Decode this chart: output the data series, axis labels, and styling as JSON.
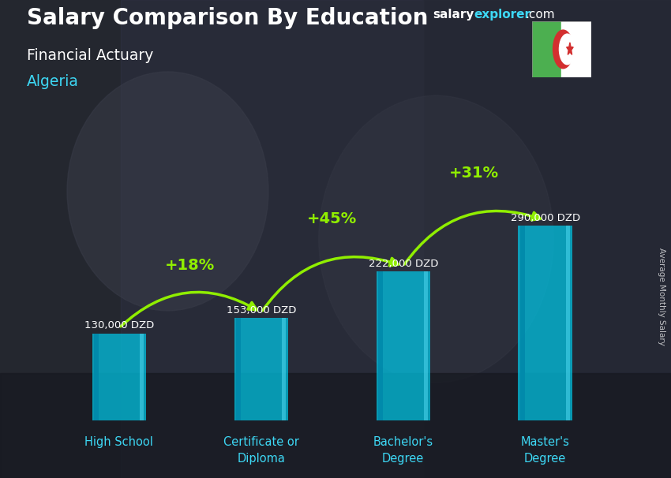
{
  "title_main": "Salary Comparison By Education",
  "title_sub": "Financial Actuary",
  "title_country": "Algeria",
  "categories": [
    "High School",
    "Certificate or\nDiploma",
    "Bachelor's\nDegree",
    "Master's\nDegree"
  ],
  "values": [
    130000,
    153000,
    222000,
    290000
  ],
  "value_labels": [
    "130,000 DZD",
    "153,000 DZD",
    "222,000 DZD",
    "290,000 DZD"
  ],
  "pct_labels": [
    "+18%",
    "+45%",
    "+31%"
  ],
  "bar_color": "#00c8e8",
  "bar_alpha": 0.72,
  "bg_dark": "#2a2d3a",
  "text_white": "#ffffff",
  "text_cyan": "#3dd8f5",
  "text_green": "#90ee00",
  "ylabel": "Average Monthly Salary",
  "ylim_max": 370000,
  "brand_salary_color": "#ffffff",
  "brand_explorer_color": "#3dd8f5",
  "brand_dotcom_color": "#ffffff",
  "flag_green": "#4caf50",
  "flag_white": "#ffffff",
  "flag_red": "#d32f2f"
}
